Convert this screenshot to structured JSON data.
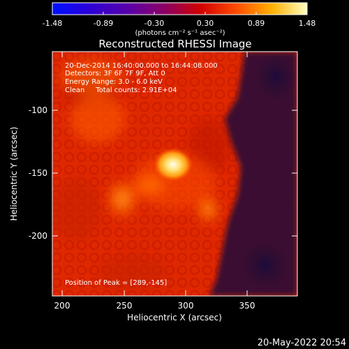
{
  "colorbar": {
    "ticks": [
      "-1.48",
      "-0.89",
      "-0.30",
      "0.30",
      "0.89",
      "1.48"
    ],
    "unit_label": "(photons cm⁻² s⁻¹ asec⁻²)",
    "colors": [
      "#0018ff",
      "#3a00c8",
      "#6b00a0",
      "#a8003a",
      "#e01a00",
      "#ff7a00",
      "#ffd000",
      "#ffffb0"
    ]
  },
  "title": "Reconstructed RHESSI Image",
  "info": {
    "line1": "20-Dec-2014 16:40:00.000 to 16:44:08.000",
    "line2": "Detectors: 3F 6F 7F 9F, Att 0",
    "line3": "Energy Range: 3.0 - 6.0 keV",
    "line4": "Clean     Total counts: 2.91E+04",
    "peak": "Position of Peak = [289,-145]"
  },
  "axes": {
    "x_label": "Heliocentric X (arcsec)",
    "y_label": "Heliocentric Y (arcsec)",
    "x_ticks": [
      "200",
      "250",
      "300",
      "350"
    ],
    "y_ticks": [
      "-100",
      "-150",
      "-200"
    ]
  },
  "footer_date": "20-May-2022 20:54",
  "image_colors": {
    "background": "#e52a00",
    "dark_region": "#2a0f2e",
    "core": "#fff4b0",
    "warm": "#ff8a10"
  }
}
